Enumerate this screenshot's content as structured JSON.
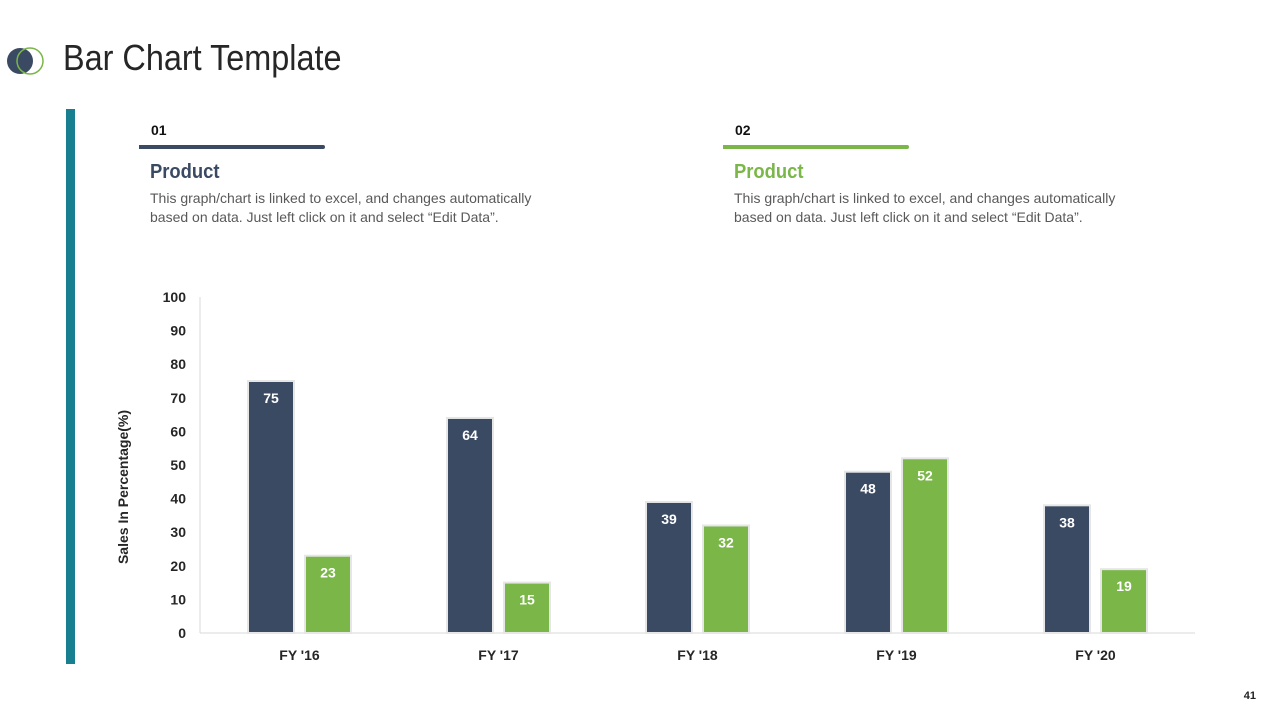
{
  "header": {
    "title": "Bar Chart Template"
  },
  "sections": [
    {
      "number": "01",
      "heading": "Product",
      "description": "This graph/chart is linked to excel, and changes automatically based on data. Just left click on it and select “Edit Data”.",
      "color": "#3a4a63"
    },
    {
      "number": "02",
      "heading": "Product",
      "description": "This graph/chart is linked to excel, and changes automatically based on data. Just left click on it and select “Edit Data”.",
      "color": "#7ab648"
    }
  ],
  "page_number": "41",
  "colors": {
    "series1": "#3a4a63",
    "series2": "#7ab648",
    "accent_bar": "#177f8f"
  },
  "chart_data": {
    "type": "bar",
    "title": "",
    "xlabel": "",
    "ylabel": "Sales In Percentage(%)",
    "ylim": [
      0,
      100
    ],
    "yticks": [
      0,
      10,
      20,
      30,
      40,
      50,
      60,
      70,
      80,
      90,
      100
    ],
    "categories": [
      "FY '16",
      "FY '17",
      "FY '18",
      "FY '19",
      "FY '20"
    ],
    "series": [
      {
        "name": "Product 01",
        "color": "#3a4a63",
        "values": [
          75,
          64,
          39,
          48,
          38
        ]
      },
      {
        "name": "Product 02",
        "color": "#7ab648",
        "values": [
          23,
          15,
          32,
          52,
          19
        ]
      }
    ],
    "grid": false,
    "data_labels": true
  }
}
